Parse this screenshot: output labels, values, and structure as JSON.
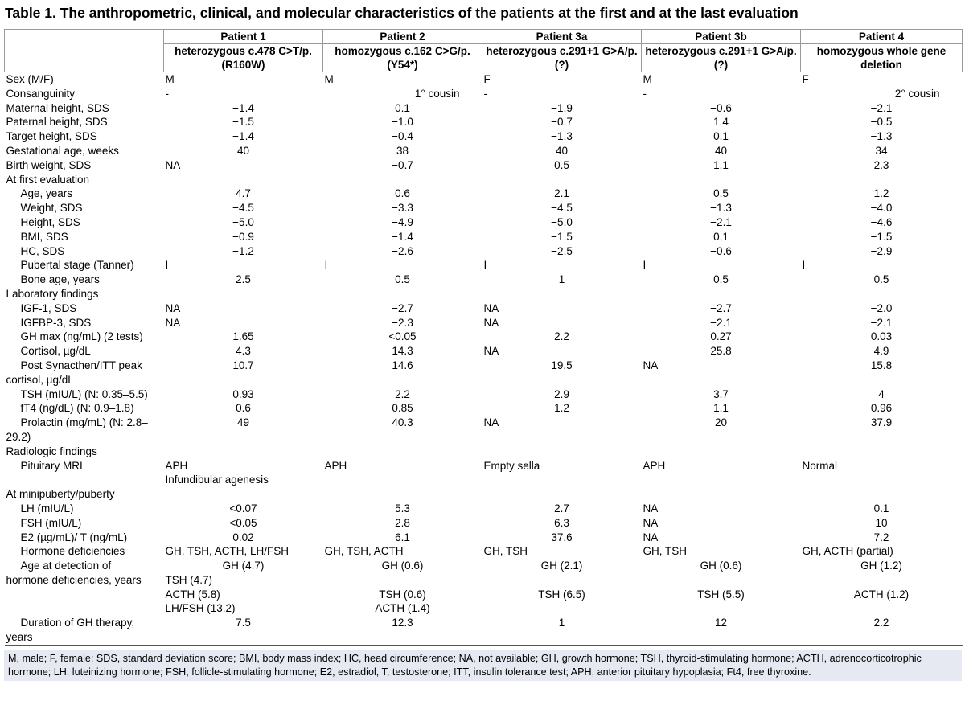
{
  "title": "Table 1. The anthropometric, clinical, and molecular characteristics of the patients at the first and at the last evaluation",
  "headers": [
    {
      "name": "Patient 1",
      "genotype": "heterozygous c.478 C>T/p.(R160W)"
    },
    {
      "name": "Patient 2",
      "genotype": "homozygous c.162 C>G/p.(Y54*)"
    },
    {
      "name": "Patient 3a",
      "genotype": "heterozygous c.291+1 G>A/p.(?)"
    },
    {
      "name": "Patient 3b",
      "genotype": "heterozygous c.291+1 G>A/p.(?)"
    },
    {
      "name": "Patient 4",
      "genotype": "homozygous whole gene deletion"
    }
  ],
  "rows": [
    {
      "label": "Sex (M/F)",
      "indent": false,
      "cells": [
        {
          "v": "M",
          "a": "l"
        },
        {
          "v": "M",
          "a": "l"
        },
        {
          "v": "F",
          "a": "l"
        },
        {
          "v": "M",
          "a": "l"
        },
        {
          "v": "F",
          "a": "l"
        }
      ]
    },
    {
      "label": "Consanguinity",
      "indent": false,
      "cells": [
        {
          "v": "-",
          "a": "l"
        },
        {
          "v": "1° cousin",
          "a": "r"
        },
        {
          "v": "-",
          "a": "l"
        },
        {
          "v": "-",
          "a": "l"
        },
        {
          "v": "2° cousin",
          "a": "r"
        }
      ]
    },
    {
      "label": "Maternal height, SDS",
      "indent": false,
      "cells": [
        {
          "v": "−1.4",
          "a": "c"
        },
        {
          "v": "0.1",
          "a": "c"
        },
        {
          "v": "−1.9",
          "a": "c"
        },
        {
          "v": "−0.6",
          "a": "c"
        },
        {
          "v": "−2.1",
          "a": "c"
        }
      ]
    },
    {
      "label": "Paternal height, SDS",
      "indent": false,
      "cells": [
        {
          "v": "−1.5",
          "a": "c"
        },
        {
          "v": "−1.0",
          "a": "c"
        },
        {
          "v": "−0.7",
          "a": "c"
        },
        {
          "v": "1.4",
          "a": "c"
        },
        {
          "v": "−0.5",
          "a": "c"
        }
      ]
    },
    {
      "label": "Target height, SDS",
      "indent": false,
      "cells": [
        {
          "v": "−1.4",
          "a": "c"
        },
        {
          "v": "−0.4",
          "a": "c"
        },
        {
          "v": "−1.3",
          "a": "c"
        },
        {
          "v": "0.1",
          "a": "c"
        },
        {
          "v": "−1.3",
          "a": "c"
        }
      ]
    },
    {
      "label": "Gestational age, weeks",
      "indent": false,
      "cells": [
        {
          "v": "40",
          "a": "c"
        },
        {
          "v": "38",
          "a": "c"
        },
        {
          "v": "40",
          "a": "c"
        },
        {
          "v": "40",
          "a": "c"
        },
        {
          "v": "34",
          "a": "c"
        }
      ]
    },
    {
      "label": "Birth weight, SDS",
      "indent": false,
      "cells": [
        {
          "v": "NA",
          "a": "l"
        },
        {
          "v": "−0.7",
          "a": "c"
        },
        {
          "v": "0.5",
          "a": "c"
        },
        {
          "v": "1.1",
          "a": "c"
        },
        {
          "v": "2.3",
          "a": "c"
        }
      ]
    },
    {
      "label": "At first evaluation",
      "indent": false,
      "cells": [
        {
          "v": "",
          "a": "c"
        },
        {
          "v": "",
          "a": "c"
        },
        {
          "v": "",
          "a": "c"
        },
        {
          "v": "",
          "a": "c"
        },
        {
          "v": "",
          "a": "c"
        }
      ]
    },
    {
      "label": "Age, years",
      "indent": true,
      "cells": [
        {
          "v": "4.7",
          "a": "c"
        },
        {
          "v": "0.6",
          "a": "c"
        },
        {
          "v": "2.1",
          "a": "c"
        },
        {
          "v": "0.5",
          "a": "c"
        },
        {
          "v": "1.2",
          "a": "c"
        }
      ]
    },
    {
      "label": "Weight, SDS",
      "indent": true,
      "cells": [
        {
          "v": "−4.5",
          "a": "c"
        },
        {
          "v": "−3.3",
          "a": "c"
        },
        {
          "v": "−4.5",
          "a": "c"
        },
        {
          "v": "−1.3",
          "a": "c"
        },
        {
          "v": "−4.0",
          "a": "c"
        }
      ]
    },
    {
      "label": "Height, SDS",
      "indent": true,
      "cells": [
        {
          "v": "−5.0",
          "a": "c"
        },
        {
          "v": "−4.9",
          "a": "c"
        },
        {
          "v": "−5.0",
          "a": "c"
        },
        {
          "v": "−2.1",
          "a": "c"
        },
        {
          "v": "−4.6",
          "a": "c"
        }
      ]
    },
    {
      "label": "BMI, SDS",
      "indent": true,
      "cells": [
        {
          "v": "−0.9",
          "a": "c"
        },
        {
          "v": "−1.4",
          "a": "c"
        },
        {
          "v": "−1.5",
          "a": "c"
        },
        {
          "v": "0,1",
          "a": "c"
        },
        {
          "v": "−1.5",
          "a": "c"
        }
      ]
    },
    {
      "label": "HC, SDS",
      "indent": true,
      "cells": [
        {
          "v": "−1.2",
          "a": "c"
        },
        {
          "v": "−2.6",
          "a": "c"
        },
        {
          "v": "−2.5",
          "a": "c"
        },
        {
          "v": "−0.6",
          "a": "c"
        },
        {
          "v": "−2.9",
          "a": "c"
        }
      ]
    },
    {
      "label": "Pubertal stage (Tanner)",
      "indent": true,
      "cells": [
        {
          "v": "I",
          "a": "l"
        },
        {
          "v": "I",
          "a": "l"
        },
        {
          "v": "I",
          "a": "l"
        },
        {
          "v": "I",
          "a": "l"
        },
        {
          "v": "I",
          "a": "l"
        }
      ]
    },
    {
      "label": "Bone age, years",
      "indent": true,
      "cells": [
        {
          "v": "2.5",
          "a": "c"
        },
        {
          "v": "0.5",
          "a": "c"
        },
        {
          "v": "1",
          "a": "c"
        },
        {
          "v": "0.5",
          "a": "c"
        },
        {
          "v": "0.5",
          "a": "c"
        }
      ]
    },
    {
      "label": "Laboratory findings",
      "indent": false,
      "cells": [
        {
          "v": "",
          "a": "c"
        },
        {
          "v": "",
          "a": "c"
        },
        {
          "v": "",
          "a": "c"
        },
        {
          "v": "",
          "a": "c"
        },
        {
          "v": "",
          "a": "c"
        }
      ]
    },
    {
      "label": "IGF-1, SDS",
      "indent": true,
      "cells": [
        {
          "v": "NA",
          "a": "l"
        },
        {
          "v": "−2.7",
          "a": "c"
        },
        {
          "v": "NA",
          "a": "l"
        },
        {
          "v": "−2.7",
          "a": "c"
        },
        {
          "v": "−2.0",
          "a": "c"
        }
      ]
    },
    {
      "label": "IGFBP-3, SDS",
      "indent": true,
      "cells": [
        {
          "v": "NA",
          "a": "l"
        },
        {
          "v": "−2.3",
          "a": "c"
        },
        {
          "v": "NA",
          "a": "l"
        },
        {
          "v": "−2.1",
          "a": "c"
        },
        {
          "v": "−2.1",
          "a": "c"
        }
      ]
    },
    {
      "label": "GH max (ng/mL) (2 tests)",
      "indent": true,
      "cells": [
        {
          "v": "1.65",
          "a": "c"
        },
        {
          "v": "<0.05",
          "a": "c"
        },
        {
          "v": "2.2",
          "a": "c"
        },
        {
          "v": "0.27",
          "a": "c"
        },
        {
          "v": "0.03",
          "a": "c"
        }
      ]
    },
    {
      "label": "Cortisol, µg/dL",
      "indent": true,
      "cells": [
        {
          "v": "4.3",
          "a": "c"
        },
        {
          "v": "14.3",
          "a": "c"
        },
        {
          "v": "NA",
          "a": "l"
        },
        {
          "v": "25.8",
          "a": "c"
        },
        {
          "v": "4.9",
          "a": "c"
        }
      ]
    },
    {
      "label": "Post Synacthen/ITT peak",
      "indent": true,
      "cells": [
        {
          "v": "10.7",
          "a": "c"
        },
        {
          "v": "14.6",
          "a": "c"
        },
        {
          "v": "19.5",
          "a": "c"
        },
        {
          "v": "NA",
          "a": "l"
        },
        {
          "v": "15.8",
          "a": "c"
        }
      ]
    },
    {
      "label": "cortisol, µg/dL",
      "indent": false,
      "cells": [
        {
          "v": "",
          "a": "c"
        },
        {
          "v": "",
          "a": "c"
        },
        {
          "v": "",
          "a": "c"
        },
        {
          "v": "",
          "a": "c"
        },
        {
          "v": "",
          "a": "c"
        }
      ]
    },
    {
      "label": "TSH (mIU/L) (N: 0.35–5.5)",
      "indent": true,
      "cells": [
        {
          "v": "0.93",
          "a": "c"
        },
        {
          "v": "2.2",
          "a": "c"
        },
        {
          "v": "2.9",
          "a": "c"
        },
        {
          "v": "3.7",
          "a": "c"
        },
        {
          "v": "4",
          "a": "c"
        }
      ]
    },
    {
      "label": "fT4 (ng/dL) (N: 0.9–1.8)",
      "indent": true,
      "cells": [
        {
          "v": "0.6",
          "a": "c"
        },
        {
          "v": "0.85",
          "a": "c"
        },
        {
          "v": "1.2",
          "a": "c"
        },
        {
          "v": "1.1",
          "a": "c"
        },
        {
          "v": "0.96",
          "a": "c"
        }
      ]
    },
    {
      "label": "Prolactin (mg/mL) (N: 2.8–",
      "indent": true,
      "cells": [
        {
          "v": "49",
          "a": "c"
        },
        {
          "v": "40.3",
          "a": "c"
        },
        {
          "v": "NA",
          "a": "l"
        },
        {
          "v": "20",
          "a": "c"
        },
        {
          "v": "37.9",
          "a": "c"
        }
      ]
    },
    {
      "label": "29.2)",
      "indent": false,
      "cells": [
        {
          "v": "",
          "a": "c"
        },
        {
          "v": "",
          "a": "c"
        },
        {
          "v": "",
          "a": "c"
        },
        {
          "v": "",
          "a": "c"
        },
        {
          "v": "",
          "a": "c"
        }
      ]
    },
    {
      "label": "Radiologic findings",
      "indent": false,
      "cells": [
        {
          "v": "",
          "a": "c"
        },
        {
          "v": "",
          "a": "c"
        },
        {
          "v": "",
          "a": "c"
        },
        {
          "v": "",
          "a": "c"
        },
        {
          "v": "",
          "a": "c"
        }
      ]
    },
    {
      "label": "Pituitary MRI",
      "indent": true,
      "cells": [
        {
          "v": "APH",
          "a": "l"
        },
        {
          "v": "APH",
          "a": "l"
        },
        {
          "v": "Empty sella",
          "a": "l"
        },
        {
          "v": "APH",
          "a": "l"
        },
        {
          "v": "Normal",
          "a": "l"
        }
      ]
    },
    {
      "label": "",
      "indent": false,
      "cells": [
        {
          "v": "Infundibular agenesis",
          "a": "l"
        },
        {
          "v": "",
          "a": "c"
        },
        {
          "v": "",
          "a": "c"
        },
        {
          "v": "",
          "a": "c"
        },
        {
          "v": "",
          "a": "c"
        }
      ]
    },
    {
      "label": "At minipuberty/puberty",
      "indent": false,
      "cells": [
        {
          "v": "",
          "a": "c"
        },
        {
          "v": "",
          "a": "c"
        },
        {
          "v": "",
          "a": "c"
        },
        {
          "v": "",
          "a": "c"
        },
        {
          "v": "",
          "a": "c"
        }
      ]
    },
    {
      "label": "LH (mIU/L)",
      "indent": true,
      "cells": [
        {
          "v": "<0.07",
          "a": "c"
        },
        {
          "v": "5.3",
          "a": "c"
        },
        {
          "v": "2.7",
          "a": "c"
        },
        {
          "v": "NA",
          "a": "l"
        },
        {
          "v": "0.1",
          "a": "c"
        }
      ]
    },
    {
      "label": "FSH (mIU/L)",
      "indent": true,
      "cells": [
        {
          "v": "<0.05",
          "a": "c"
        },
        {
          "v": "2.8",
          "a": "c"
        },
        {
          "v": "6.3",
          "a": "c"
        },
        {
          "v": "NA",
          "a": "l"
        },
        {
          "v": "10",
          "a": "c"
        }
      ]
    },
    {
      "label": "E2 (µg/mL)/ T (ng/mL)",
      "indent": true,
      "cells": [
        {
          "v": "0.02",
          "a": "c"
        },
        {
          "v": "6.1",
          "a": "c"
        },
        {
          "v": "37.6",
          "a": "c"
        },
        {
          "v": "NA",
          "a": "l"
        },
        {
          "v": "7.2",
          "a": "c"
        }
      ]
    },
    {
      "label": "Hormone deficiencies",
      "indent": true,
      "cells": [
        {
          "v": "GH, TSH, ACTH, LH/FSH",
          "a": "l"
        },
        {
          "v": "GH, TSH, ACTH",
          "a": "l"
        },
        {
          "v": "GH, TSH",
          "a": "l"
        },
        {
          "v": "GH, TSH",
          "a": "l"
        },
        {
          "v": "GH, ACTH (partial)",
          "a": "l"
        }
      ]
    },
    {
      "label": "Age at detection of",
      "indent": true,
      "cells": [
        {
          "v": "GH (4.7)",
          "a": "c"
        },
        {
          "v": "GH (0.6)",
          "a": "c"
        },
        {
          "v": "GH (2.1)",
          "a": "c"
        },
        {
          "v": "GH (0.6)",
          "a": "c"
        },
        {
          "v": "GH (1.2)",
          "a": "c"
        }
      ]
    },
    {
      "label": "hormone deficiencies, years",
      "indent": false,
      "cells": [
        {
          "v": "TSH (4.7)",
          "a": "l"
        },
        {
          "v": "",
          "a": "c"
        },
        {
          "v": "",
          "a": "c"
        },
        {
          "v": "",
          "a": "c"
        },
        {
          "v": "",
          "a": "c"
        }
      ]
    },
    {
      "label": "",
      "indent": false,
      "cells": [
        {
          "v": "ACTH (5.8)",
          "a": "l"
        },
        {
          "v": "TSH (0.6)",
          "a": "c"
        },
        {
          "v": "TSH (6.5)",
          "a": "c"
        },
        {
          "v": "TSH (5.5)",
          "a": "c"
        },
        {
          "v": "ACTH (1.2)",
          "a": "c"
        }
      ]
    },
    {
      "label": "",
      "indent": false,
      "cells": [
        {
          "v": "LH/FSH (13.2)",
          "a": "l"
        },
        {
          "v": "ACTH (1.4)",
          "a": "c"
        },
        {
          "v": "",
          "a": "c"
        },
        {
          "v": "",
          "a": "c"
        },
        {
          "v": "",
          "a": "c"
        }
      ]
    },
    {
      "label": "Duration of GH therapy,",
      "indent": true,
      "cells": [
        {
          "v": "7.5",
          "a": "c"
        },
        {
          "v": "12.3",
          "a": "c"
        },
        {
          "v": "1",
          "a": "c"
        },
        {
          "v": "12",
          "a": "c"
        },
        {
          "v": "2.2",
          "a": "c"
        }
      ]
    },
    {
      "label": "years",
      "indent": false,
      "cells": [
        {
          "v": "",
          "a": "c"
        },
        {
          "v": "",
          "a": "c"
        },
        {
          "v": "",
          "a": "c"
        },
        {
          "v": "",
          "a": "c"
        },
        {
          "v": "",
          "a": "c"
        }
      ]
    }
  ],
  "footnote": "M, male; F, female; SDS, standard deviation score; BMI, body mass index; HC, head circumference; NA, not available; GH, growth hormone; TSH, thyroid-stimulating hormone; ACTH, adrenocorticotrophic hormone; LH, luteinizing hormone; FSH, follicle-stimulating hormone; E2, estradiol, T, testosterone; ITT, insulin tolerance test; APH, anterior pituitary hypoplasia; Ft4, free thyroxine."
}
